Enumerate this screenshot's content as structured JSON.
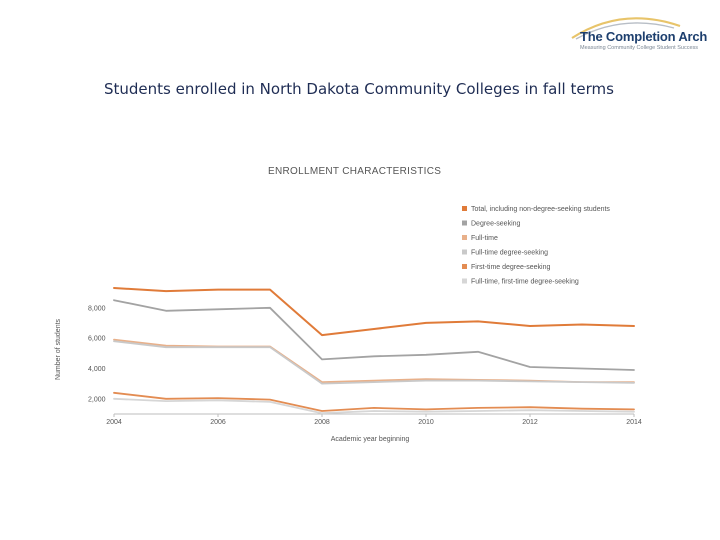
{
  "logo": {
    "name": "The Completion Arch",
    "tagline": "Measuring Community College Student Success"
  },
  "slide_title": "Students enrolled in North Dakota Community Colleges in fall terms",
  "chart_data": {
    "type": "line",
    "title": "ENROLLMENT CHARACTERISTICS",
    "xlabel": "Academic year beginning",
    "ylabel": "Number of students",
    "x": [
      2004,
      2005,
      2006,
      2007,
      2008,
      2009,
      2010,
      2011,
      2012,
      2013,
      2014
    ],
    "xlim": [
      2004,
      2014
    ],
    "ylim": [
      1000,
      9500
    ],
    "x_ticks": [
      "2004",
      "2006",
      "2008",
      "2010",
      "2012",
      "2014"
    ],
    "y_ticks": [
      "2,000",
      "4,000",
      "6,000",
      "8,000"
    ],
    "legend_position": "top-right",
    "series": [
      {
        "name": "Total, including non-degree-seeking students",
        "color": "#e07b39",
        "values": [
          9300,
          9100,
          9200,
          9200,
          6200,
          6600,
          7000,
          7100,
          6800,
          6900,
          6800
        ]
      },
      {
        "name": "Degree-seeking",
        "color": "#a3a3a3",
        "values": [
          8500,
          7800,
          7900,
          8000,
          4600,
          4800,
          4900,
          5100,
          4100,
          4000,
          3900
        ]
      },
      {
        "name": "Full-time",
        "color": "#e8b08a",
        "values": [
          5900,
          5500,
          5450,
          5450,
          3100,
          3200,
          3300,
          3250,
          3200,
          3100,
          3100
        ]
      },
      {
        "name": "Full-time degree-seeking",
        "color": "#c9c9c9",
        "values": [
          5800,
          5400,
          5400,
          5400,
          3000,
          3100,
          3200,
          3200,
          3150,
          3100,
          3050
        ]
      },
      {
        "name": "First-time degree-seeking",
        "color": "#e38c52",
        "values": [
          2400,
          2000,
          2050,
          1950,
          1200,
          1400,
          1300,
          1400,
          1450,
          1350,
          1300
        ]
      },
      {
        "name": "Full-time, first-time degree-seeking",
        "color": "#d6d6d6",
        "values": [
          2000,
          1850,
          1900,
          1800,
          1050,
          1200,
          1150,
          1200,
          1250,
          1200,
          1150
        ]
      }
    ]
  }
}
